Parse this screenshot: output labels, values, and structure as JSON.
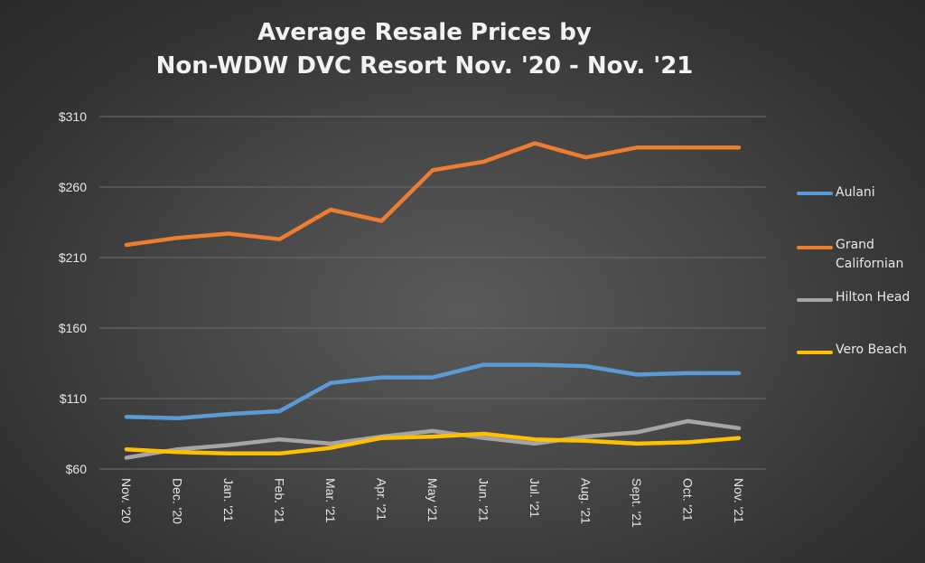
{
  "chart_data": {
    "type": "line",
    "title": "Average Resale Prices by",
    "subtitle": "Non-WDW DVC Resort Nov. '20 - Nov. '21",
    "xlabel": "",
    "ylabel": "",
    "categories": [
      "Nov. '20",
      "Dec. '20",
      "Jan. '21",
      "Feb. '21",
      "Mar. '21",
      "Apr. '21",
      "May '21",
      "Jun. '21",
      "Jul. '21",
      "Aug. '21",
      "Sept. '21",
      "Oct. '21",
      "Nov. '21"
    ],
    "yticks": [
      "$60",
      "$110",
      "$160",
      "$210",
      "$260",
      "$310"
    ],
    "ylim": [
      60,
      310
    ],
    "grid": true,
    "legend_position": "right",
    "series": [
      {
        "name": "Aulani",
        "color": "#5b9bd5",
        "values": [
          97,
          96,
          99,
          101,
          121,
          125,
          125,
          134,
          134,
          133,
          127,
          128,
          128
        ]
      },
      {
        "name": "Grand Californian",
        "color": "#ed7d31",
        "values": [
          219,
          224,
          227,
          223,
          244,
          236,
          272,
          278,
          291,
          281,
          288,
          288,
          288
        ]
      },
      {
        "name": "Hilton Head",
        "color": "#a5a5a5",
        "values": [
          68,
          74,
          77,
          81,
          78,
          83,
          87,
          82,
          78,
          83,
          86,
          94,
          89
        ]
      },
      {
        "name": "Vero Beach",
        "color": "#ffc000",
        "values": [
          74,
          72,
          71,
          71,
          75,
          82,
          83,
          85,
          81,
          80,
          78,
          79,
          82
        ]
      }
    ]
  }
}
